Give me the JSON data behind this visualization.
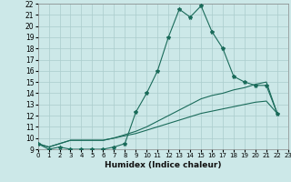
{
  "title": "",
  "xlabel": "Humidex (Indice chaleur)",
  "bg_color": "#cce8e8",
  "grid_color": "#aacccc",
  "line_color": "#1a6b5a",
  "xlim": [
    0,
    23
  ],
  "ylim": [
    9,
    22
  ],
  "xticks": [
    0,
    1,
    2,
    3,
    4,
    5,
    6,
    7,
    8,
    9,
    10,
    11,
    12,
    13,
    14,
    15,
    16,
    17,
    18,
    19,
    20,
    21,
    22,
    23
  ],
  "yticks": [
    9,
    10,
    11,
    12,
    13,
    14,
    15,
    16,
    17,
    18,
    19,
    20,
    21,
    22
  ],
  "line1_x": [
    0,
    1,
    2,
    3,
    4,
    5,
    6,
    7,
    8,
    9,
    10,
    11,
    12,
    13,
    14,
    15,
    16,
    17,
    18,
    19,
    20,
    21,
    22
  ],
  "line1_y": [
    9.5,
    9.0,
    9.2,
    9.0,
    9.0,
    9.0,
    9.0,
    9.2,
    9.5,
    12.3,
    14.0,
    16.0,
    19.0,
    21.5,
    20.8,
    21.8,
    19.5,
    18.0,
    15.5,
    15.0,
    14.7,
    14.7,
    12.2
  ],
  "line2_x": [
    0,
    1,
    2,
    3,
    4,
    5,
    6,
    7,
    8,
    9,
    10,
    11,
    12,
    13,
    14,
    15,
    16,
    17,
    18,
    19,
    20,
    21,
    22
  ],
  "line2_y": [
    9.5,
    9.2,
    9.5,
    9.8,
    9.8,
    9.8,
    9.8,
    10.0,
    10.3,
    10.6,
    11.0,
    11.5,
    12.0,
    12.5,
    13.0,
    13.5,
    13.8,
    14.0,
    14.3,
    14.5,
    14.8,
    15.0,
    12.2
  ],
  "line3_x": [
    0,
    1,
    2,
    3,
    4,
    5,
    6,
    7,
    8,
    9,
    10,
    11,
    12,
    13,
    14,
    15,
    16,
    17,
    18,
    19,
    20,
    21,
    22
  ],
  "line3_y": [
    9.5,
    9.2,
    9.5,
    9.8,
    9.8,
    9.8,
    9.8,
    10.0,
    10.2,
    10.4,
    10.7,
    11.0,
    11.3,
    11.6,
    11.9,
    12.2,
    12.4,
    12.6,
    12.8,
    13.0,
    13.2,
    13.3,
    12.2
  ]
}
